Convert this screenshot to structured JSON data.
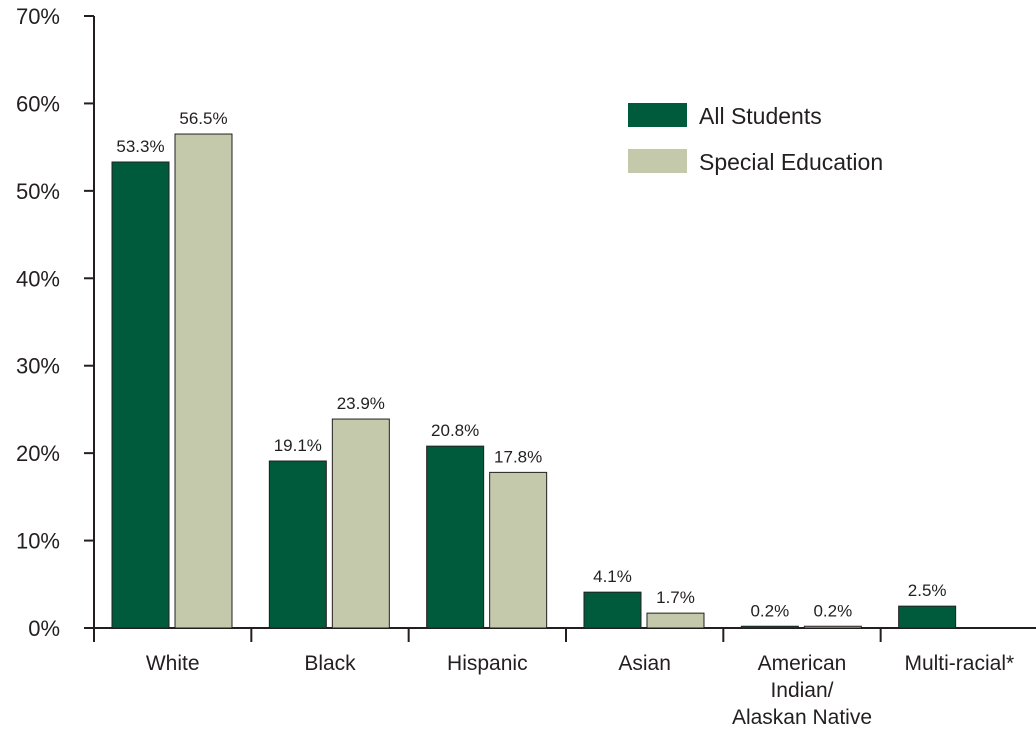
{
  "chart_data": {
    "type": "bar",
    "title": "",
    "xlabel": "",
    "ylabel": "",
    "ylim": [
      0,
      70
    ],
    "yticks": [
      "0%",
      "10%",
      "20%",
      "30%",
      "40%",
      "50%",
      "60%",
      "70%"
    ],
    "categories": [
      [
        "White"
      ],
      [
        "Black"
      ],
      [
        "Hispanic"
      ],
      [
        "Asian"
      ],
      [
        "American",
        "Indian/",
        "Alaskan Native"
      ],
      [
        "Multi-racial*"
      ]
    ],
    "series": [
      {
        "name": "All Students",
        "color": "#005a3c",
        "values": [
          53.3,
          19.1,
          20.8,
          4.1,
          0.2,
          2.5
        ],
        "labels": [
          "53.3%",
          "19.1%",
          "20.8%",
          "4.1%",
          "0.2%",
          "2.5%"
        ]
      },
      {
        "name": "Special Education",
        "color": "#c4c9ac",
        "values": [
          56.5,
          23.9,
          17.8,
          1.7,
          0.2,
          null
        ],
        "labels": [
          "56.5%",
          "23.9%",
          "17.8%",
          "1.7%",
          "0.2%",
          null
        ]
      }
    ],
    "legend_position": "top-right",
    "grid": false
  }
}
